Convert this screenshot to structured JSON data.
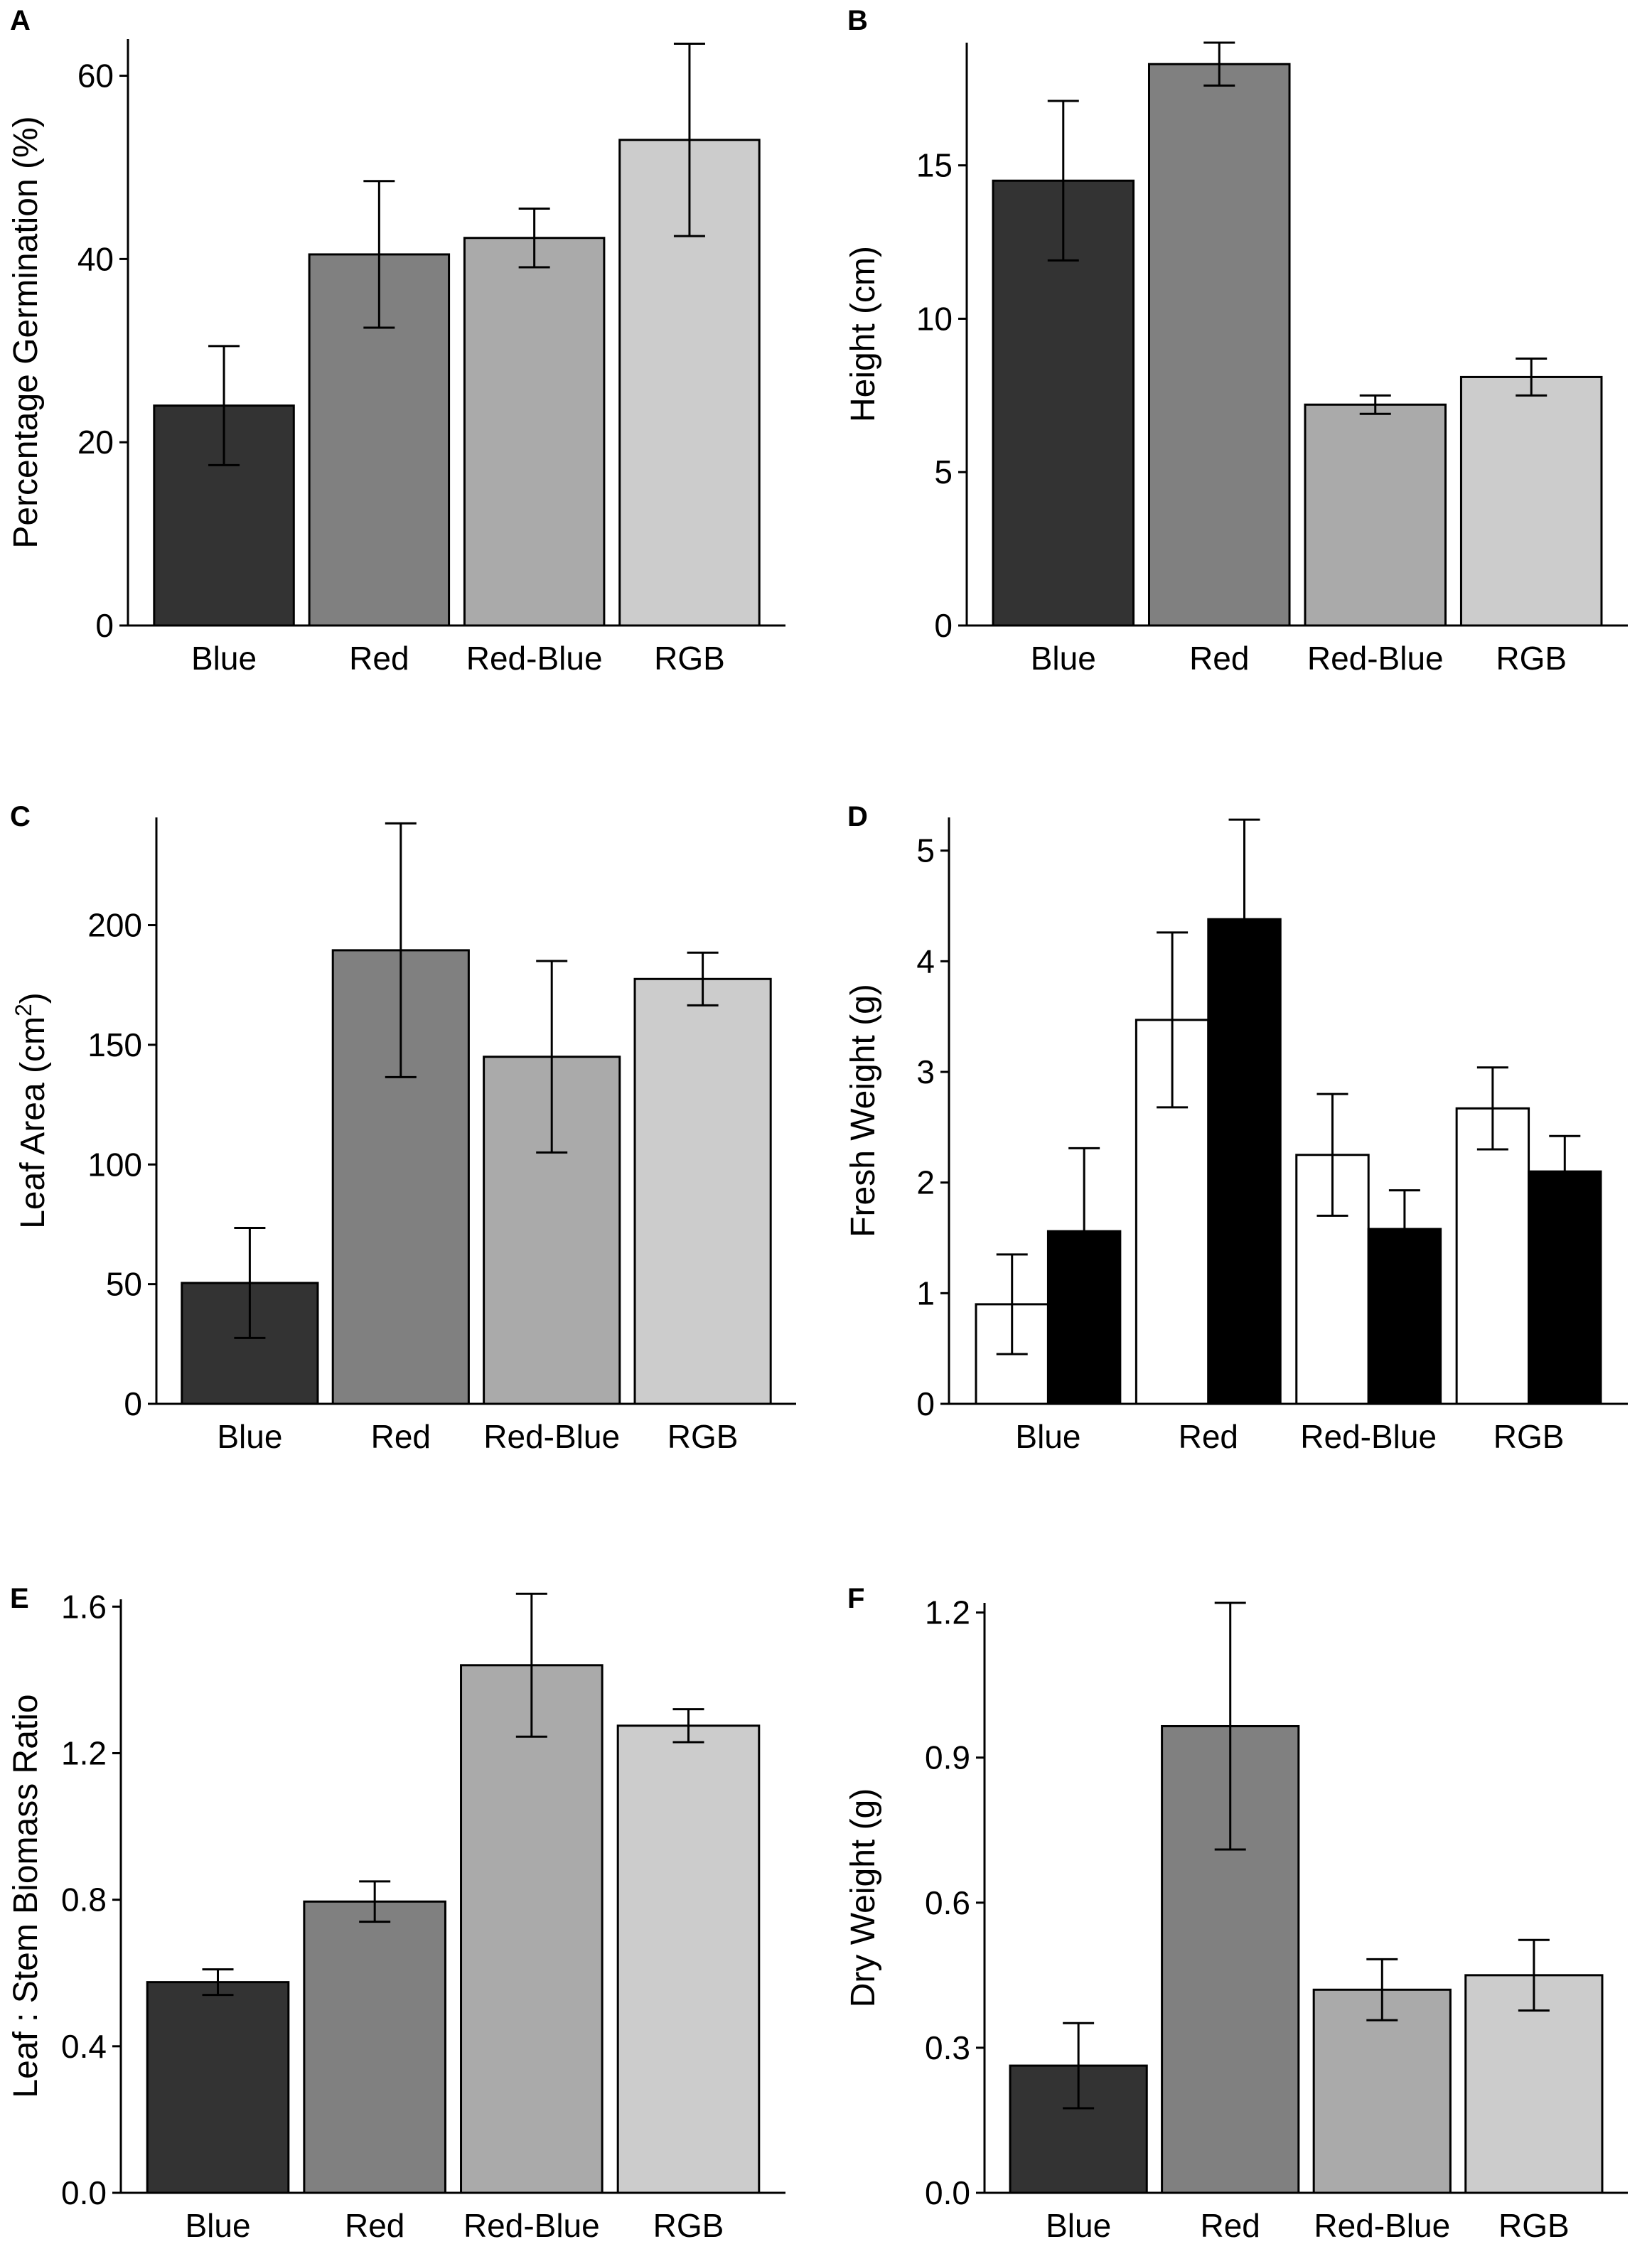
{
  "figure_title": "",
  "fills": {
    "Blue": "#333333",
    "Red": "#808080",
    "Red-Blue": "#aaaaaa",
    "RGB": "#cccccc"
  },
  "grouped_fills": [
    "#ffffff",
    "#000000"
  ],
  "chart_data": [
    {
      "panel": "A",
      "type": "bar",
      "title": "",
      "ylabel": "Percentage Germination (%)",
      "categories": [
        "Blue",
        "Red",
        "Red-Blue",
        "RGB"
      ],
      "values": [
        24,
        40.5,
        42.3,
        53
      ],
      "errors": [
        6.5,
        8,
        3.2,
        10.5
      ],
      "ylim": [
        0,
        64
      ],
      "yticks": [
        0,
        20,
        40,
        60
      ]
    },
    {
      "panel": "B",
      "type": "bar",
      "title": "",
      "ylabel": "Height (cm)",
      "categories": [
        "Blue",
        "Red",
        "Red-Blue",
        "RGB"
      ],
      "values": [
        14.5,
        18.3,
        7.2,
        8.1
      ],
      "errors": [
        2.6,
        0.7,
        0.3,
        0.6
      ],
      "ylim": [
        0,
        19
      ],
      "yticks": [
        0,
        5,
        10,
        15
      ]
    },
    {
      "panel": "C",
      "type": "bar",
      "title": "",
      "ylabel": "Leaf Area (cm",
      "ylabel_sup": "2",
      "ylabel_end": ")",
      "categories": [
        "Blue",
        "Red",
        "Red-Blue",
        "RGB"
      ],
      "values": [
        50.5,
        189.5,
        145,
        177.5
      ],
      "errors": [
        23,
        53,
        40,
        11
      ],
      "ylim": [
        0,
        245
      ],
      "yticks": [
        0,
        50,
        100,
        150,
        200
      ]
    },
    {
      "panel": "D",
      "type": "bar",
      "title": "",
      "ylabel": "Fresh Weight (g)",
      "categories": [
        "Blue",
        "Red",
        "Red-Blue",
        "RGB"
      ],
      "series": [
        {
          "name": "",
          "values": [
            0.9,
            3.47,
            2.25,
            2.67
          ],
          "errors": [
            0.45,
            0.79,
            0.55,
            0.37
          ]
        },
        {
          "name": "",
          "values": [
            1.56,
            4.38,
            1.58,
            2.1
          ],
          "errors": [
            0.75,
            0.9,
            0.35,
            0.32
          ]
        }
      ],
      "ylim": [
        0,
        5.3
      ],
      "yticks": [
        0,
        1,
        2,
        3,
        4,
        5
      ]
    },
    {
      "panel": "E",
      "type": "bar",
      "title": "",
      "ylabel": "Leaf : Stem Biomass Ratio",
      "categories": [
        "Blue",
        "Red",
        "Red-Blue",
        "RGB"
      ],
      "values": [
        0.575,
        0.795,
        1.44,
        1.275
      ],
      "errors": [
        0.035,
        0.055,
        0.195,
        0.045
      ],
      "ylim": [
        0,
        1.62
      ],
      "yticks": [
        "0.0",
        "0.4",
        "0.8",
        "1.2",
        "1.6"
      ]
    },
    {
      "panel": "F",
      "type": "bar",
      "title": "",
      "ylabel": "Dry Weight (g)",
      "categories": [
        "Blue",
        "Red",
        "Red-Blue",
        "RGB"
      ],
      "values": [
        0.263,
        0.965,
        0.42,
        0.45
      ],
      "errors": [
        0.088,
        0.255,
        0.063,
        0.073
      ],
      "ylim": [
        0,
        1.22
      ],
      "yticks": [
        "0.0",
        "0.3",
        "0.6",
        "0.9",
        "1.2"
      ]
    }
  ]
}
